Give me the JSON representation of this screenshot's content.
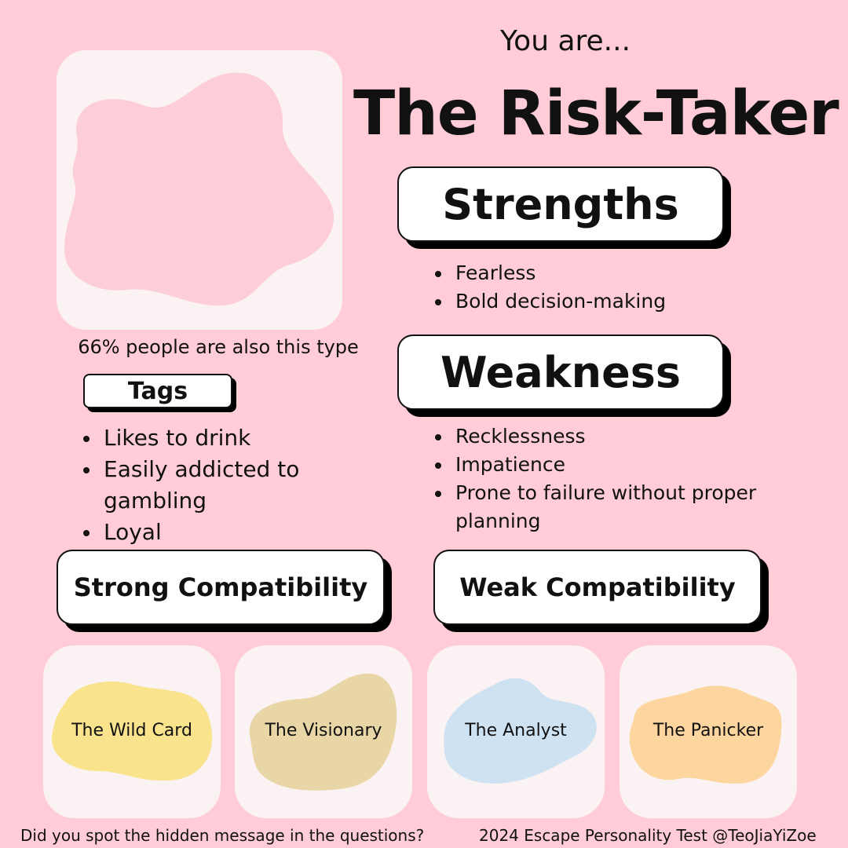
{
  "header": {
    "intro": "You are...",
    "type_name": "The Risk-Taker"
  },
  "hero": {
    "stat": "66% people are also this type"
  },
  "tags": {
    "heading": "Tags",
    "items": [
      "Likes to drink",
      "Easily addicted to gambling",
      "Loyal"
    ]
  },
  "strengths": {
    "heading": "Strengths",
    "items": [
      "Fearless",
      "Bold decision-making"
    ]
  },
  "weakness": {
    "heading": "Weakness",
    "items": [
      "Recklessness",
      "Impatience",
      "Prone to failure without proper planning"
    ]
  },
  "compatibility": {
    "strong_heading": "Strong Compatibility",
    "weak_heading": "Weak Compatibility",
    "cards": [
      {
        "label": "The Wild Card",
        "color": "#f9e38c"
      },
      {
        "label": "The Visionary",
        "color": "#e8d6a6"
      },
      {
        "label": "The Analyst",
        "color": "#cfe2f2"
      },
      {
        "label": "The Panicker",
        "color": "#fdd59e"
      }
    ]
  },
  "footer": {
    "left": "Did you spot the hidden message in the questions?",
    "right": "2024 Escape Personality Test @TeoJiaYiZoe"
  },
  "colors": {
    "background": "#ffccd8",
    "card": "#fbf3f3",
    "blob": "#fdcdd8"
  }
}
